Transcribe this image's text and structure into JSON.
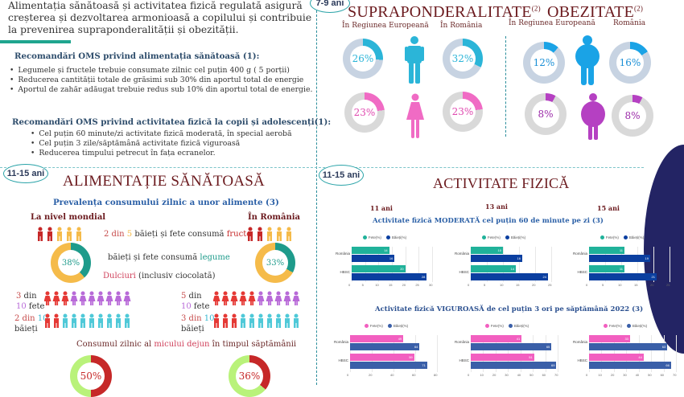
{
  "intro": {
    "text": "Alimentația sănătoasă și activitatea fizică regulată asigură creșterea și dezvoltarea armonioasă a copilului și contribuie la prevenirea supraponderalității și obezității."
  },
  "nutrition_recs": {
    "title": "Recomandări OMS privind alimentația sănătoasă (1):",
    "items": [
      "Legumele și fructele trebuie consumate zilnic cel puțin 400 g ( 5 porții)",
      "Reducerea cantității totale de grăsimi sub 30% din aportul total de energie",
      "Aportul de zahăr adăugat trebuie redus sub 10% din aportul total de energie."
    ]
  },
  "activity_recs": {
    "title": "Recomandări OMS privind activitatea fizică la copii și adolescenți(1):",
    "items": [
      "Cel puțin 60 minute/zi activitate fizică moderată, în special aerobă",
      "Cel puțin 3 zile/săptămână activitate fizică viguroasă",
      "Reducerea timpului petrecut în fața ecranelor."
    ]
  },
  "badges": {
    "age_7_9": "7-9 ani",
    "age_11_15_left": "11-15 ani",
    "age_11_15_right": "11-15 ani"
  },
  "overweight": {
    "title": "SUPRAPONDERALITATE",
    "ref": "(2)",
    "col_eu": "În Regiunea Europeană",
    "col_ro": "În România",
    "boys_eu": "26%",
    "boys_ro": "32%",
    "girls_eu": "23%",
    "girls_ro": "23%",
    "colors": {
      "boys": "#2bb5d8",
      "girls": "#f06bc4",
      "track_boys": "#c7d3e2",
      "track_girls": "#d9d9d9"
    }
  },
  "obesity": {
    "title": "OBEZITATE",
    "ref": "(2)",
    "col_eu": "În Regiunea Europeană",
    "col_ro": "România",
    "boys_eu": "12%",
    "boys_ro": "16%",
    "girls_eu": "8%",
    "girls_ro": "8%",
    "colors": {
      "boys": "#1aa3e6",
      "girls": "#b540c2"
    }
  },
  "healthy_food": {
    "title": "ALIMENTAȚIE SĂNĂTOASĂ",
    "subtitle": "Prevalența consumului zilnic a unor alimente  (3)",
    "col_world": "La nivel mondial",
    "col_ro": "În România",
    "fruit_text_a": "2 din ",
    "fruit_text_b": "5",
    "fruit_text_c": " băieți și fete consumă ",
    "fruit_text_d": "fructe",
    "veg_text_a": "băieți și fete consumă ",
    "veg_text_b": "legume",
    "veg_world": "38%",
    "veg_ro": "33%",
    "sweets_a": "Dulciuri",
    "sweets_b": " (inclusiv ciocolată)",
    "world_girls_a": "3",
    "world_girls_b": " din",
    "world_girls_c": "10",
    "world_girls_d": " fete",
    "world_boys_a": "2 din ",
    "world_boys_b": "10",
    "world_boys_c": "băieți",
    "ro_girls_a": "5",
    "ro_girls_b": " din",
    "ro_girls_c": "10",
    "ro_girls_d": " fete",
    "ro_boys_a": "3 din ",
    "ro_boys_b": "10",
    "ro_boys_c": "băieți",
    "breakfast_a": "Consumul zilnic al ",
    "breakfast_b": "micului dejun",
    "breakfast_c": " în timpul săptămânii",
    "breakfast_world": "50%",
    "breakfast_ro": "36%"
  },
  "physical_activity": {
    "title": "ACTIVITATE FIZICĂ",
    "ages": [
      "11 ani",
      "13 ani",
      "15 ani"
    ],
    "moderate_title": "Activitate fizică MODERATĂ  cel puțin 60 de minute pe zi (3)",
    "vigorous_title": "Activitate fizică VIGUROASĂ  de cel puțin 3 ori pe săptămână 2022 (3)",
    "legend_girls": "Fete(%)",
    "legend_boys": "Băieți(%)",
    "row_ro": "România",
    "row_hbsc": "HBSC"
  },
  "chart_data": [
    {
      "type": "bar",
      "title": "Activitate fizică MODERATĂ - 11 ani",
      "categories": [
        "România",
        "HBSC"
      ],
      "series": [
        {
          "name": "Fete(%)",
          "values": [
            14,
            20
          ]
        },
        {
          "name": "Băieți(%)",
          "values": [
            16,
            28
          ]
        }
      ],
      "xlim": [
        0,
        30
      ],
      "ticks": [
        0,
        5,
        10,
        15,
        20,
        25,
        30
      ],
      "colors": [
        "#20b29a",
        "#0b3fa0"
      ]
    },
    {
      "type": "bar",
      "title": "Activitate fizică MODERATĂ - 13 ani",
      "categories": [
        "România",
        "HBSC"
      ],
      "series": [
        {
          "name": "Fete(%)",
          "values": [
            10,
            14
          ]
        },
        {
          "name": "Băieți(%)",
          "values": [
            16,
            24
          ]
        }
      ],
      "xlim": [
        0,
        25
      ],
      "ticks": [
        0,
        5,
        10,
        15,
        20,
        25
      ],
      "colors": [
        "#20b29a",
        "#0b3fa0"
      ]
    },
    {
      "type": "bar",
      "title": "Activitate fizică MODERATĂ - 15 ani",
      "categories": [
        "România",
        "HBSC"
      ],
      "series": [
        {
          "name": "Fete(%)",
          "values": [
            11,
            11
          ]
        },
        {
          "name": "Băieți(%)",
          "values": [
            19,
            21
          ]
        }
      ],
      "xlim": [
        0,
        25
      ],
      "ticks": [
        0,
        5,
        10,
        15,
        20,
        25
      ],
      "colors": [
        "#20b29a",
        "#0b3fa0"
      ]
    },
    {
      "type": "bar",
      "title": "Activitate fizică VIGUROASĂ - 11 ani",
      "categories": [
        "România",
        "HBSC"
      ],
      "series": [
        {
          "name": "Fete(%)",
          "values": [
            49,
            59
          ]
        },
        {
          "name": "Băieți(%)",
          "values": [
            64,
            71
          ]
        }
      ],
      "xlim": [
        0,
        80
      ],
      "ticks": [
        0,
        20,
        40,
        60,
        80
      ],
      "colors": [
        "#f25fc0",
        "#3a5fa8"
      ]
    },
    {
      "type": "bar",
      "title": "Activitate fizică VIGUROASĂ - 13 ani",
      "categories": [
        "România",
        "HBSC"
      ],
      "series": [
        {
          "name": "Fete(%)",
          "values": [
            41,
            51
          ]
        },
        {
          "name": "Băieți(%)",
          "values": [
            65,
            69
          ]
        }
      ],
      "xlim": [
        0,
        70
      ],
      "ticks": [
        0,
        10,
        20,
        30,
        40,
        50,
        60,
        70
      ],
      "colors": [
        "#f25fc0",
        "#3a5fa8"
      ]
    },
    {
      "type": "bar",
      "title": "Activitate fizică VIGUROASĂ - 15 ani",
      "categories": [
        "România",
        "HBSC"
      ],
      "series": [
        {
          "name": "Fete(%)",
          "values": [
            33,
            44
          ]
        },
        {
          "name": "Băieți(%)",
          "values": [
            63,
            66
          ]
        }
      ],
      "xlim": [
        0,
        70
      ],
      "ticks": [
        0,
        10,
        20,
        30,
        40,
        50,
        60,
        70
      ],
      "colors": [
        "#f25fc0",
        "#3a5fa8"
      ]
    }
  ]
}
